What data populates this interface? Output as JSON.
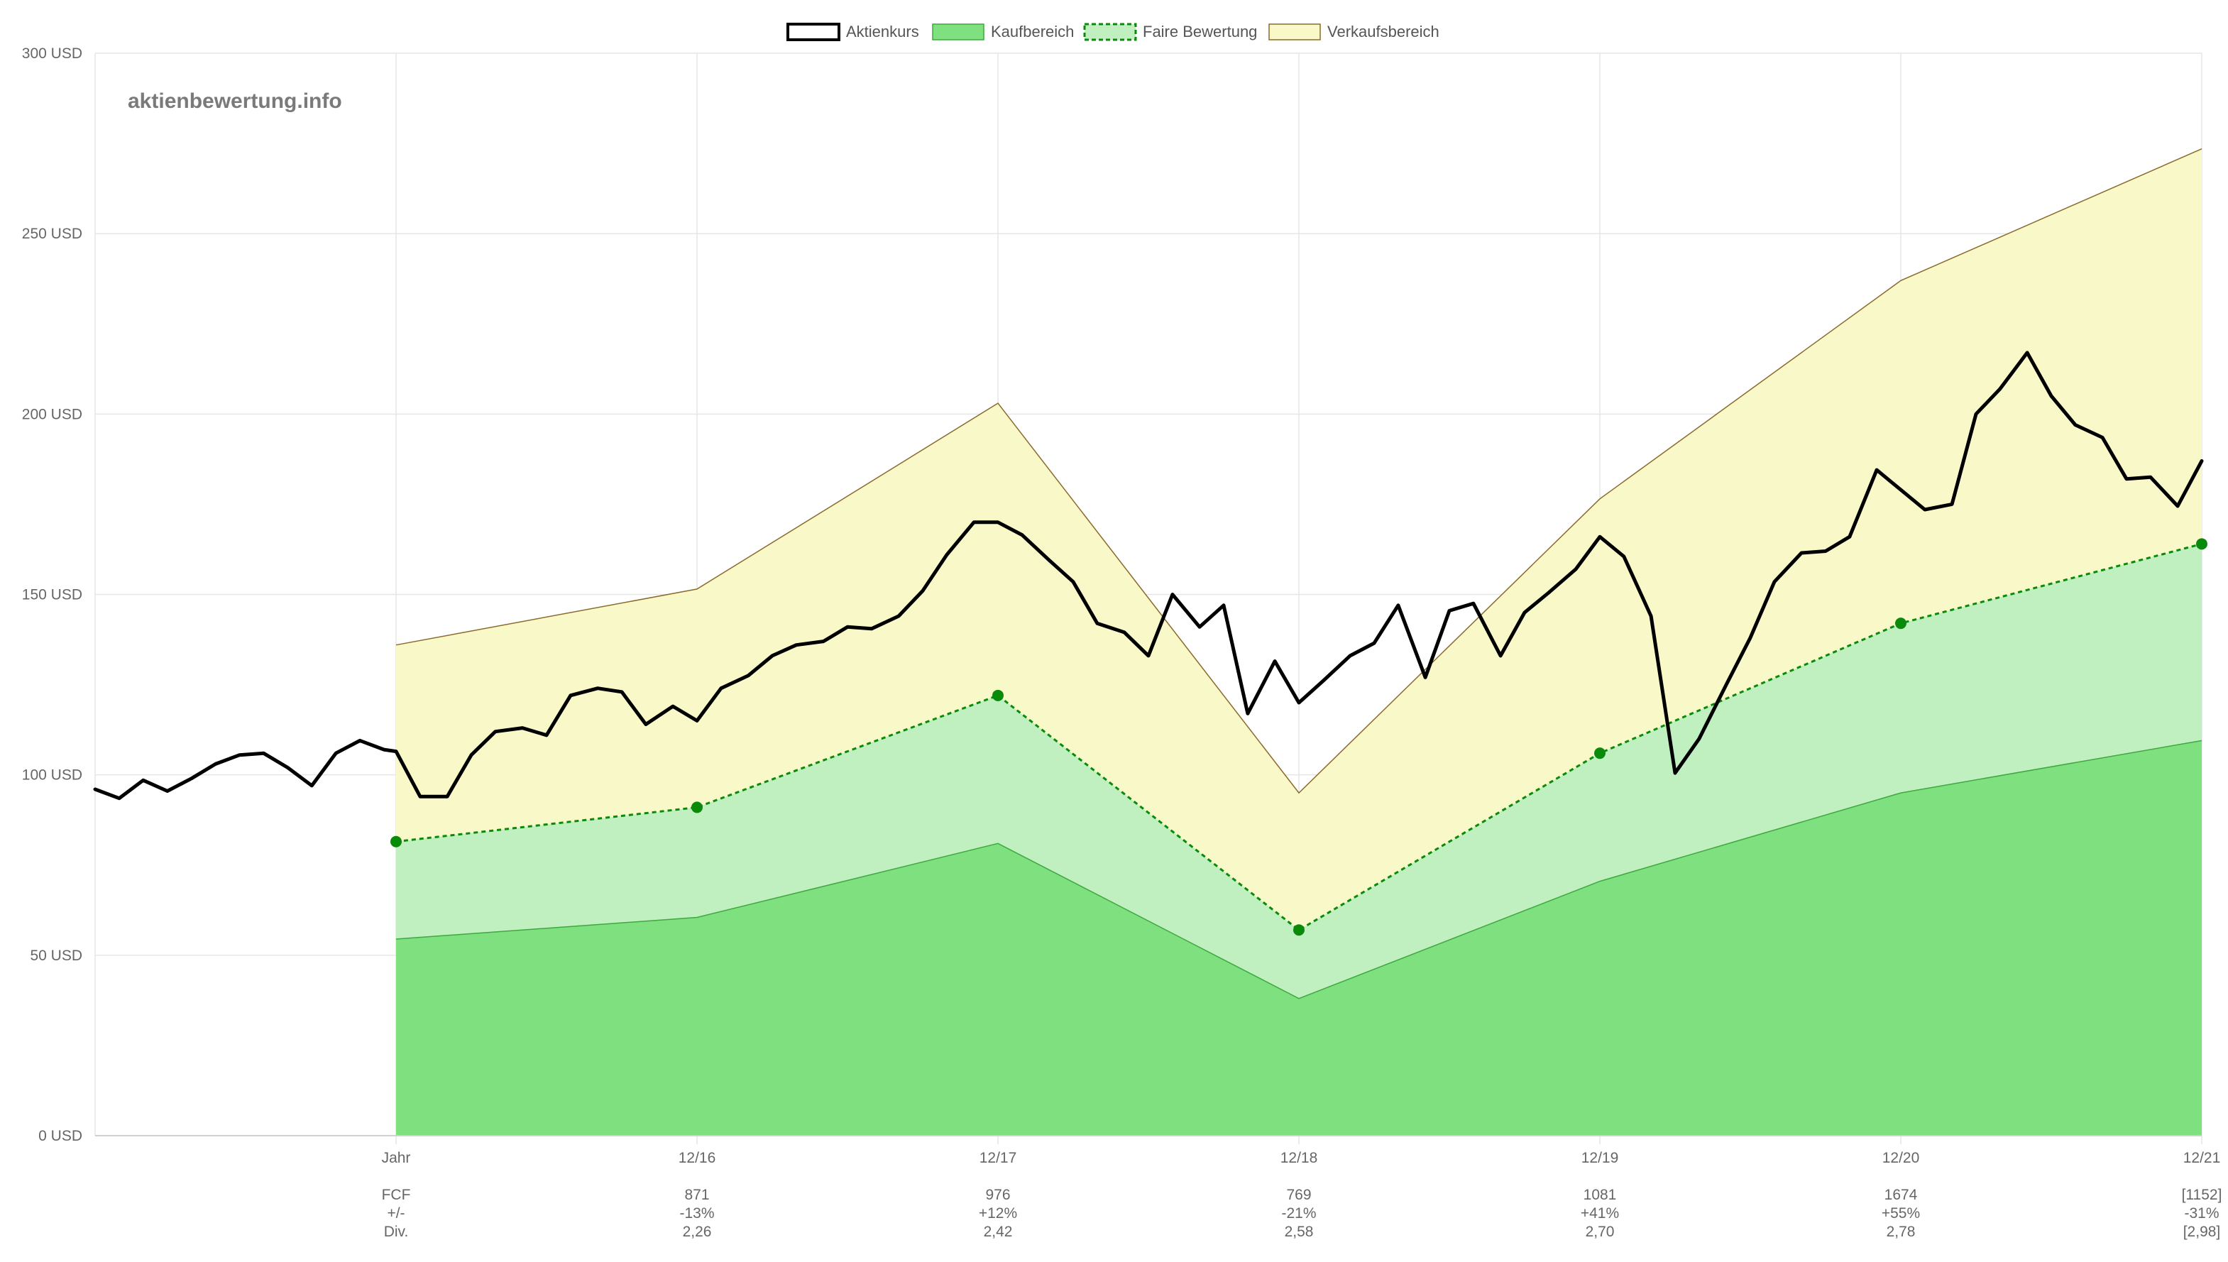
{
  "watermark": "aktienbewertung.info",
  "colors": {
    "price": "#000000",
    "buy_fill": "#7fe07f",
    "buy_stroke": "#3fa83f",
    "fair_fill": "#c0efc0",
    "fair_stroke": "#0a8a0a",
    "sell_fill": "#f9f8c8",
    "sell_stroke": "#8a6a2a"
  },
  "chart_data": {
    "type": "area",
    "title": "",
    "xlabel": "",
    "ylabel": "",
    "ylim": [
      0,
      300
    ],
    "yticks": [
      0,
      50,
      100,
      150,
      200,
      250,
      300
    ],
    "y_unit": "USD",
    "grid": true,
    "legend_position": "top-center",
    "legend": [
      "Aktienkurs",
      "Kaufbereich",
      "Faire Bewertung",
      "Verkaufsbereich"
    ],
    "categories": [
      "Jahr",
      "12/16",
      "12/17",
      "12/18",
      "12/19",
      "12/20",
      "12/21"
    ],
    "x_range": [
      -1,
      6
    ],
    "bands": {
      "x": [
        0,
        1,
        2,
        3,
        4,
        5,
        6
      ],
      "kaufbereich_upper": [
        54.5,
        60.5,
        81,
        38,
        70.5,
        95,
        109.5
      ],
      "faire_bewertung": [
        81.5,
        91,
        122,
        57,
        106,
        142,
        164
      ],
      "verkaufsbereich_upper": [
        136,
        151.5,
        203,
        95,
        176.5,
        237,
        273.5
      ]
    },
    "series": [
      {
        "name": "Aktienkurs",
        "x": [
          -1,
          -0.92,
          -0.84,
          -0.76,
          -0.68,
          -0.6,
          -0.52,
          -0.44,
          -0.36,
          -0.28,
          -0.2,
          -0.12,
          -0.04,
          0,
          0.08,
          0.17,
          0.25,
          0.33,
          0.42,
          0.5,
          0.58,
          0.67,
          0.75,
          0.83,
          0.92,
          1,
          1.08,
          1.17,
          1.25,
          1.33,
          1.42,
          1.5,
          1.58,
          1.67,
          1.75,
          1.83,
          1.92,
          2,
          2.08,
          2.17,
          2.25,
          2.33,
          2.42,
          2.5,
          2.58,
          2.67,
          2.75,
          2.83,
          2.92,
          3,
          3.08,
          3.17,
          3.25,
          3.33,
          3.42,
          3.5,
          3.58,
          3.67,
          3.75,
          3.83,
          3.92,
          4,
          4.08,
          4.17,
          4.25,
          4.33,
          4.42,
          4.5,
          4.58,
          4.67,
          4.75,
          4.83,
          4.92,
          5,
          5.08,
          5.17,
          5.25,
          5.33,
          5.42,
          5.5,
          5.58,
          5.67,
          5.75,
          5.83,
          5.92,
          6
        ],
        "values": [
          96,
          93.5,
          98.5,
          95.5,
          99,
          103,
          105.5,
          106,
          102,
          97,
          106,
          109.5,
          107,
          106.5,
          94,
          94,
          105.5,
          112,
          113,
          111,
          122,
          124,
          123,
          114,
          119,
          115,
          124,
          127.5,
          133,
          136,
          137,
          141,
          140.5,
          144,
          151,
          161,
          170,
          170,
          166.5,
          159.5,
          153.5,
          142,
          139.5,
          133,
          150,
          141,
          147,
          117,
          131.5,
          120,
          126,
          133,
          136.5,
          147,
          127,
          145.5,
          147.5,
          133,
          145,
          150.5,
          157,
          166,
          160.5,
          144,
          100.5,
          110,
          125,
          138,
          153.5,
          161.5,
          162,
          166,
          184.5,
          179,
          173.5,
          175,
          200,
          207,
          217,
          205,
          197,
          193.5,
          182,
          182.5,
          174.5,
          187
        ]
      }
    ],
    "footer_rows": {
      "labels": [
        "FCF",
        "+/-",
        "Div."
      ],
      "columns": [
        {
          "category": "12/16",
          "fcf": "871",
          "change": "-13%",
          "div": "2,26"
        },
        {
          "category": "12/17",
          "fcf": "976",
          "change": "+12%",
          "div": "2,42"
        },
        {
          "category": "12/18",
          "fcf": "769",
          "change": "-21%",
          "div": "2,58"
        },
        {
          "category": "12/19",
          "fcf": "1081",
          "change": "+41%",
          "div": "2,70"
        },
        {
          "category": "12/20",
          "fcf": "1674",
          "change": "+55%",
          "div": "2,78"
        },
        {
          "category": "12/21",
          "fcf": "[1152]",
          "change": "-31%",
          "div": "[2,98]"
        }
      ]
    }
  }
}
